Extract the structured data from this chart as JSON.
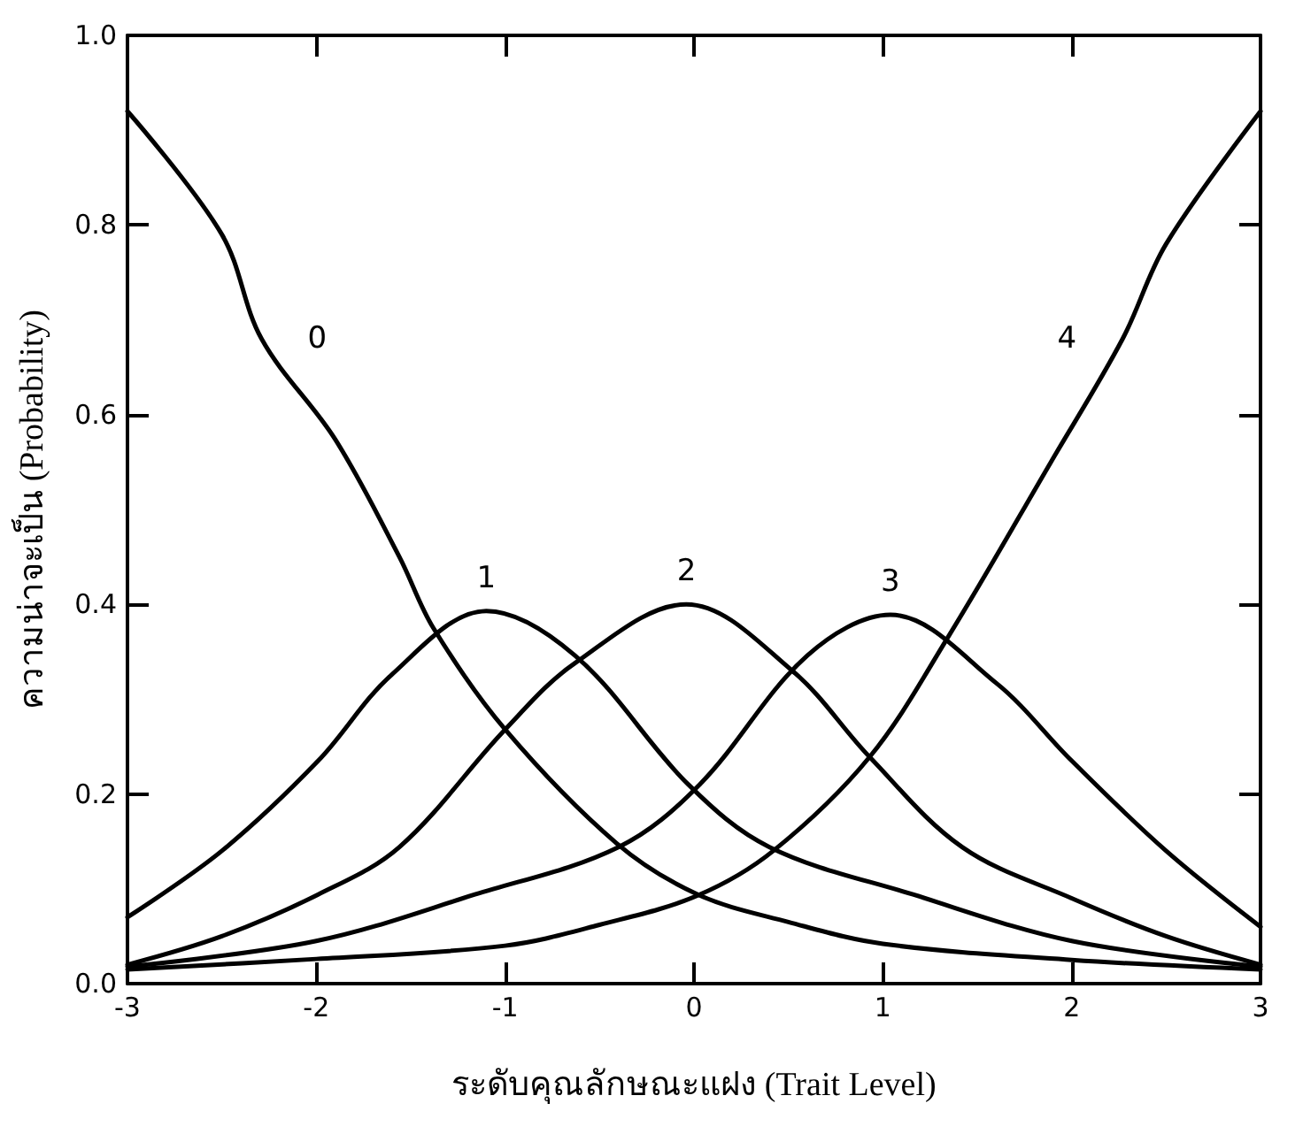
{
  "chart_data": {
    "type": "line",
    "xlabel": "ระดับคุณลักษณะแฝง (Trait Level)",
    "ylabel": "ความน่าจะเป็น (Probability)",
    "xlim": [
      -3,
      3
    ],
    "xticks": [
      -3,
      -2,
      -1,
      0,
      1,
      2,
      3
    ],
    "ylim": [
      0,
      1
    ],
    "yticks": [
      {
        "value": 0,
        "label": "0.0"
      },
      0.2,
      0.4,
      0.6,
      0.8,
      {
        "value": 1,
        "label": "1.0"
      }
    ],
    "grid": false,
    "marker": "none",
    "line_style": "solid",
    "series": [
      {
        "name": "0",
        "color": "#000000",
        "x": [
          -3,
          -2.5,
          -2.29,
          -1.9,
          -1.56,
          -1.38,
          -1,
          -0.41,
          0.02,
          0.5,
          1,
          2,
          3
        ],
        "values": [
          0.92,
          0.79,
          0.68,
          0.574,
          0.45,
          0.375,
          0.268,
          0.148,
          0.094,
          0.065,
          0.042,
          0.025,
          0.015
        ]
      },
      {
        "name": "1",
        "color": "#000000",
        "x": [
          -3,
          -2.5,
          -1.99,
          -1.6,
          -1.1,
          -0.63,
          -0.03,
          0.4,
          1.16,
          2,
          3
        ],
        "values": [
          0.07,
          0.14,
          0.235,
          0.326,
          0.393,
          0.346,
          0.21,
          0.144,
          0.094,
          0.045,
          0.018
        ]
      },
      {
        "name": "2",
        "color": "#000000",
        "x": [
          -3,
          -2.5,
          -1.99,
          -1.56,
          -1,
          -0.63,
          -0.04,
          0.52,
          0.93,
          1.42,
          2,
          2.5,
          3
        ],
        "values": [
          0.02,
          0.05,
          0.094,
          0.144,
          0.268,
          0.338,
          0.4,
          0.33,
          0.239,
          0.144,
          0.09,
          0.05,
          0.02
        ]
      },
      {
        "name": "3",
        "color": "#000000",
        "x": [
          -3,
          -2,
          -1.16,
          -0.4,
          0.03,
          0.6,
          1.04,
          1.6,
          2,
          2.5,
          3
        ],
        "values": [
          0.018,
          0.045,
          0.094,
          0.144,
          0.21,
          0.346,
          0.389,
          0.317,
          0.235,
          0.14,
          0.06
        ]
      },
      {
        "name": "4",
        "color": "#000000",
        "x": [
          -3,
          -2,
          -1,
          -0.5,
          0.02,
          0.42,
          0.93,
          1.35,
          1.89,
          2.27,
          2.5,
          3
        ],
        "values": [
          0.015,
          0.026,
          0.04,
          0.062,
          0.093,
          0.14,
          0.239,
          0.367,
          0.55,
          0.68,
          0.78,
          0.92
        ]
      }
    ]
  }
}
